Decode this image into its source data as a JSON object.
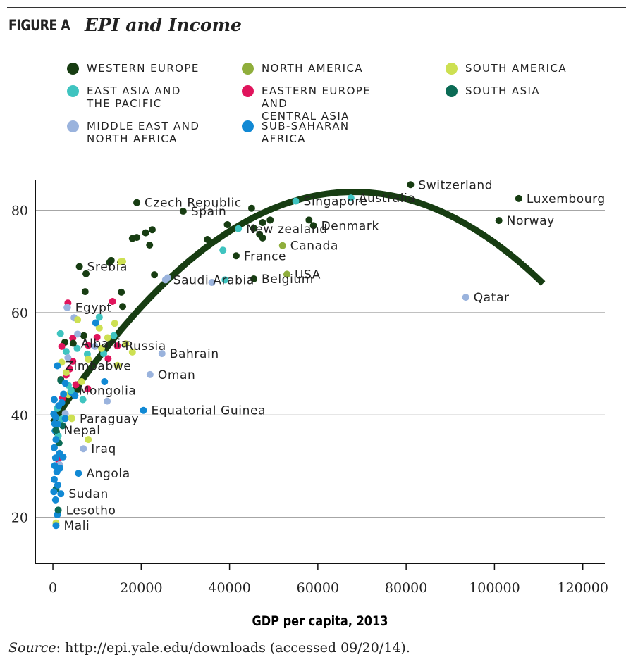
{
  "figure": {
    "label": "FIGURE A",
    "title": "EPI and Income",
    "source_prefix": "Source",
    "source_text": ": http://epi.yale.edu/downloads (accessed 09/20/14)."
  },
  "legend": [
    {
      "key": "we",
      "label": "WESTERN EUROPE",
      "color": "#173d12"
    },
    {
      "key": "na",
      "label": "NORTH AMERICA",
      "color": "#8fae3c"
    },
    {
      "key": "sa",
      "label": "SOUTH AMERICA",
      "color": "#cde052"
    },
    {
      "key": "eap",
      "label": "EAST ASIA AND\nTHE PACIFIC",
      "color": "#3fc4c0"
    },
    {
      "key": "eeca",
      "label": "EASTERN EUROPE AND\nCENTRAL ASIA",
      "color": "#e0145c"
    },
    {
      "key": "sas",
      "label": "SOUTH ASIA",
      "color": "#0b6b55"
    },
    {
      "key": "mena",
      "label": "MIDDLE EAST AND\nNORTH AFRICA",
      "color": "#9ab3dd"
    },
    {
      "key": "ssa",
      "label": "SUB-SAHARAN AFRICA",
      "color": "#1189d4"
    }
  ],
  "chart_data": {
    "type": "scatter",
    "title": "EPI and Income",
    "xlabel": "GDP per capita, 2013",
    "ylabel": "",
    "xlim": [
      -4000,
      125000
    ],
    "ylim": [
      11,
      86
    ],
    "xticks": [
      0,
      20000,
      40000,
      60000,
      80000,
      100000,
      120000
    ],
    "yticks": [
      20,
      40,
      60,
      80
    ],
    "grid": "horizontal",
    "trendline": {
      "type": "quadratic",
      "x_range": [
        0,
        111000
      ],
      "coefficients": [
        38.5,
        0.001324,
        -9.72e-09
      ]
    },
    "labeled_points": [
      {
        "name": "Switzerland",
        "region": "we",
        "x": 81000,
        "y": 85.0
      },
      {
        "name": "Luxembourg",
        "region": "we",
        "x": 105500,
        "y": 82.3
      },
      {
        "name": "Australia",
        "region": "eap",
        "x": 67500,
        "y": 82.4
      },
      {
        "name": "Czech Republic",
        "region": "we",
        "x": 19000,
        "y": 81.5
      },
      {
        "name": "Singapore",
        "region": "eap",
        "x": 55000,
        "y": 81.8
      },
      {
        "name": "Spain",
        "region": "we",
        "x": 29500,
        "y": 79.8
      },
      {
        "name": "Denmark",
        "region": "we",
        "x": 59000,
        "y": 77.0
      },
      {
        "name": "Norway",
        "region": "we",
        "x": 101000,
        "y": 78.0
      },
      {
        "name": "New zealand",
        "region": "eap",
        "x": 42000,
        "y": 76.4
      },
      {
        "name": "Canada",
        "region": "na",
        "x": 52000,
        "y": 73.1
      },
      {
        "name": "France",
        "region": "we",
        "x": 41500,
        "y": 71.1
      },
      {
        "name": "Srebia",
        "region": "we",
        "x": 6000,
        "y": 69.0
      },
      {
        "name": "USA",
        "region": "na",
        "x": 53000,
        "y": 67.5
      },
      {
        "name": "Saudi Arabia",
        "region": "mena",
        "x": 25500,
        "y": 66.4
      },
      {
        "name": "Belgium",
        "region": "we",
        "x": 45500,
        "y": 66.6
      },
      {
        "name": "Qatar",
        "region": "mena",
        "x": 93500,
        "y": 63.0
      },
      {
        "name": "Egypt",
        "region": "mena",
        "x": 3300,
        "y": 61.0
      },
      {
        "name": "Albania",
        "region": "we",
        "x": 4600,
        "y": 54.0
      },
      {
        "name": "Russia",
        "region": "eeca",
        "x": 14600,
        "y": 53.5
      },
      {
        "name": "Bahrain",
        "region": "mena",
        "x": 24700,
        "y": 52.0
      },
      {
        "name": "Zimbabwe",
        "region": "ssa",
        "x": 1000,
        "y": 49.6
      },
      {
        "name": "Oman",
        "region": "mena",
        "x": 22000,
        "y": 47.9
      },
      {
        "name": "Mongolia",
        "region": "eap",
        "x": 4100,
        "y": 44.8
      },
      {
        "name": "Equatorial Guinea",
        "region": "ssa",
        "x": 20500,
        "y": 40.9
      },
      {
        "name": "Paraguay",
        "region": "sa",
        "x": 4300,
        "y": 39.3
      },
      {
        "name": "Nepal",
        "region": "sas",
        "x": 700,
        "y": 37.0
      },
      {
        "name": "Iraq",
        "region": "mena",
        "x": 6900,
        "y": 33.4
      },
      {
        "name": "Angola",
        "region": "ssa",
        "x": 5800,
        "y": 28.6
      },
      {
        "name": "Sudan",
        "region": "ssa",
        "x": 1800,
        "y": 24.6
      },
      {
        "name": "Lesotho",
        "region": "sas",
        "x": 1200,
        "y": 21.4
      },
      {
        "name": "Mali",
        "region": "ssa",
        "x": 700,
        "y": 18.4
      }
    ],
    "points": [
      {
        "region": "we",
        "x": 13200,
        "y": 70.2
      },
      {
        "region": "we",
        "x": 15500,
        "y": 64.0
      },
      {
        "region": "we",
        "x": 15800,
        "y": 61.2
      },
      {
        "region": "we",
        "x": 7300,
        "y": 64.1
      },
      {
        "region": "we",
        "x": 7500,
        "y": 67.6
      },
      {
        "region": "we",
        "x": 18000,
        "y": 74.5
      },
      {
        "region": "we",
        "x": 19000,
        "y": 74.7
      },
      {
        "region": "we",
        "x": 21000,
        "y": 75.6
      },
      {
        "region": "we",
        "x": 22500,
        "y": 76.2
      },
      {
        "region": "we",
        "x": 21900,
        "y": 73.2
      },
      {
        "region": "we",
        "x": 23000,
        "y": 67.4
      },
      {
        "region": "we",
        "x": 35000,
        "y": 74.3
      },
      {
        "region": "we",
        "x": 39500,
        "y": 77.2
      },
      {
        "region": "we",
        "x": 45000,
        "y": 80.4
      },
      {
        "region": "we",
        "x": 45500,
        "y": 76.5
      },
      {
        "region": "we",
        "x": 47500,
        "y": 77.6
      },
      {
        "region": "we",
        "x": 47500,
        "y": 74.6
      },
      {
        "region": "we",
        "x": 49200,
        "y": 78.1
      },
      {
        "region": "we",
        "x": 46800,
        "y": 75.3
      },
      {
        "region": "we",
        "x": 58000,
        "y": 78.1
      },
      {
        "region": "we",
        "x": 7000,
        "y": 55.5
      },
      {
        "region": "we",
        "x": 1800,
        "y": 46.9
      },
      {
        "region": "we",
        "x": 5700,
        "y": 45.0
      },
      {
        "region": "we",
        "x": 2700,
        "y": 54.2
      },
      {
        "region": "we",
        "x": 12800,
        "y": 69.8
      },
      {
        "region": "we",
        "x": 800,
        "y": 36.6
      },
      {
        "region": "eap",
        "x": 38500,
        "y": 72.2
      },
      {
        "region": "eap",
        "x": 39000,
        "y": 66.4
      },
      {
        "region": "eap",
        "x": 10500,
        "y": 59.1
      },
      {
        "region": "eap",
        "x": 1700,
        "y": 55.9
      },
      {
        "region": "eap",
        "x": 5500,
        "y": 53.0
      },
      {
        "region": "eap",
        "x": 3500,
        "y": 45.8
      },
      {
        "region": "eap",
        "x": 6800,
        "y": 43.0
      },
      {
        "region": "eap",
        "x": 2000,
        "y": 39.2
      },
      {
        "region": "eap",
        "x": 1200,
        "y": 35.9
      },
      {
        "region": "eap",
        "x": 3000,
        "y": 52.4
      },
      {
        "region": "eap",
        "x": 7800,
        "y": 51.9
      },
      {
        "region": "eap",
        "x": 11500,
        "y": 52.0
      },
      {
        "region": "eap",
        "x": 13800,
        "y": 55.5
      },
      {
        "region": "eap",
        "x": 1000,
        "y": 41.3
      },
      {
        "region": "eeca",
        "x": 3400,
        "y": 61.9
      },
      {
        "region": "eeca",
        "x": 13500,
        "y": 62.2
      },
      {
        "region": "eeca",
        "x": 4500,
        "y": 55.0
      },
      {
        "region": "eeca",
        "x": 2000,
        "y": 53.4
      },
      {
        "region": "eeca",
        "x": 8000,
        "y": 53.6
      },
      {
        "region": "eeca",
        "x": 12500,
        "y": 51.0
      },
      {
        "region": "eeca",
        "x": 4500,
        "y": 50.5
      },
      {
        "region": "eeca",
        "x": 3800,
        "y": 49.0
      },
      {
        "region": "eeca",
        "x": 3000,
        "y": 47.8
      },
      {
        "region": "eeca",
        "x": 7900,
        "y": 45.1
      },
      {
        "region": "eeca",
        "x": 5200,
        "y": 45.9
      },
      {
        "region": "eeca",
        "x": 2200,
        "y": 43.3
      },
      {
        "region": "eeca",
        "x": 1200,
        "y": 31.3
      },
      {
        "region": "eeca",
        "x": 10000,
        "y": 55.2
      },
      {
        "region": "mena",
        "x": 4800,
        "y": 59.0
      },
      {
        "region": "mena",
        "x": 3200,
        "y": 61.0
      },
      {
        "region": "mena",
        "x": 5600,
        "y": 55.8
      },
      {
        "region": "mena",
        "x": 3400,
        "y": 51.2
      },
      {
        "region": "mena",
        "x": 9500,
        "y": 53.4
      },
      {
        "region": "mena",
        "x": 12300,
        "y": 42.7
      },
      {
        "region": "mena",
        "x": 36000,
        "y": 65.9
      },
      {
        "region": "mena",
        "x": 26000,
        "y": 66.8
      },
      {
        "region": "mena",
        "x": 2800,
        "y": 40.3
      },
      {
        "region": "mena",
        "x": 1500,
        "y": 30.3
      },
      {
        "region": "sa",
        "x": 15300,
        "y": 69.9
      },
      {
        "region": "sa",
        "x": 15800,
        "y": 70.0
      },
      {
        "region": "sa",
        "x": 5600,
        "y": 58.6
      },
      {
        "region": "sa",
        "x": 10500,
        "y": 57.0
      },
      {
        "region": "sa",
        "x": 14000,
        "y": 57.9
      },
      {
        "region": "sa",
        "x": 16500,
        "y": 53.9
      },
      {
        "region": "sa",
        "x": 18000,
        "y": 52.3
      },
      {
        "region": "sa",
        "x": 11000,
        "y": 53.0
      },
      {
        "region": "sa",
        "x": 8000,
        "y": 50.9
      },
      {
        "region": "sa",
        "x": 2000,
        "y": 50.3
      },
      {
        "region": "sa",
        "x": 3000,
        "y": 48.3
      },
      {
        "region": "sa",
        "x": 6500,
        "y": 46.5
      },
      {
        "region": "sa",
        "x": 3500,
        "y": 44.0
      },
      {
        "region": "sa",
        "x": 4200,
        "y": 39.4
      },
      {
        "region": "sa",
        "x": 8000,
        "y": 35.2
      },
      {
        "region": "sa",
        "x": 700,
        "y": 18.9
      },
      {
        "region": "sa",
        "x": 14600,
        "y": 49.7
      },
      {
        "region": "sa",
        "x": 12400,
        "y": 55.1
      },
      {
        "region": "sas",
        "x": 1800,
        "y": 46.7
      },
      {
        "region": "sas",
        "x": 700,
        "y": 25.5
      },
      {
        "region": "sas",
        "x": 1400,
        "y": 34.5
      },
      {
        "region": "sas",
        "x": 2200,
        "y": 37.9
      },
      {
        "region": "ssa",
        "x": 9700,
        "y": 58.0
      },
      {
        "region": "ssa",
        "x": 11700,
        "y": 46.5
      },
      {
        "region": "ssa",
        "x": 2800,
        "y": 46.2
      },
      {
        "region": "ssa",
        "x": 4200,
        "y": 44.4
      },
      {
        "region": "ssa",
        "x": 2400,
        "y": 44.1
      },
      {
        "region": "ssa",
        "x": 5000,
        "y": 43.8
      },
      {
        "region": "ssa",
        "x": 2000,
        "y": 42.4
      },
      {
        "region": "ssa",
        "x": 300,
        "y": 43.0
      },
      {
        "region": "ssa",
        "x": 1300,
        "y": 41.8
      },
      {
        "region": "ssa",
        "x": 200,
        "y": 40.2
      },
      {
        "region": "ssa",
        "x": 600,
        "y": 39.6
      },
      {
        "region": "ssa",
        "x": 1100,
        "y": 38.2
      },
      {
        "region": "ssa",
        "x": 2800,
        "y": 39.3
      },
      {
        "region": "ssa",
        "x": 500,
        "y": 36.9
      },
      {
        "region": "ssa",
        "x": 700,
        "y": 35.2
      },
      {
        "region": "ssa",
        "x": 300,
        "y": 33.6
      },
      {
        "region": "ssa",
        "x": 1500,
        "y": 32.5
      },
      {
        "region": "ssa",
        "x": 600,
        "y": 31.6
      },
      {
        "region": "ssa",
        "x": 400,
        "y": 30.1
      },
      {
        "region": "ssa",
        "x": 900,
        "y": 28.9
      },
      {
        "region": "ssa",
        "x": 300,
        "y": 27.4
      },
      {
        "region": "ssa",
        "x": 1100,
        "y": 26.3
      },
      {
        "region": "ssa",
        "x": 200,
        "y": 25.0
      },
      {
        "region": "ssa",
        "x": 600,
        "y": 23.4
      },
      {
        "region": "ssa",
        "x": 1000,
        "y": 20.5
      },
      {
        "region": "ssa",
        "x": 1600,
        "y": 29.6
      },
      {
        "region": "ssa",
        "x": 2300,
        "y": 31.8
      },
      {
        "region": "ssa",
        "x": 400,
        "y": 38.3
      }
    ]
  }
}
